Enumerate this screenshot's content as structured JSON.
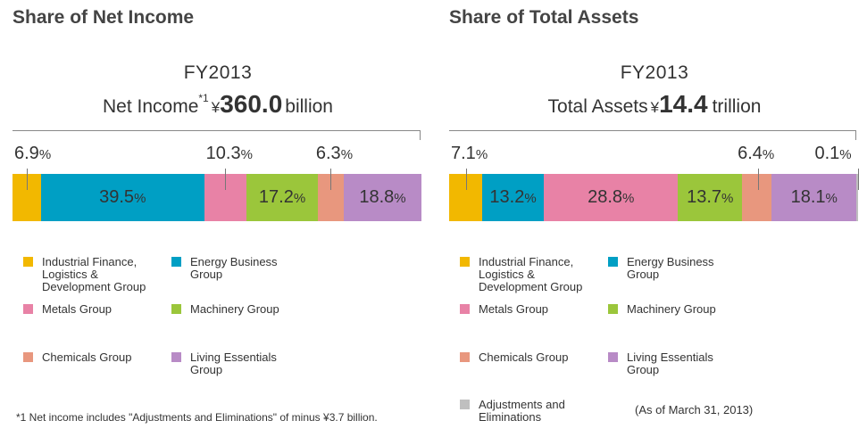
{
  "colors": {
    "industrial": "#f2b800",
    "energy": "#009fc4",
    "metals": "#e882a6",
    "machinery": "#9bc63b",
    "chemicals": "#e8977e",
    "living": "#b88bc6",
    "adjustments": "#bfbfbf"
  },
  "legend": [
    {
      "key": "industrial",
      "label": "Industrial Finance, Logistics & Development Group"
    },
    {
      "key": "energy",
      "label": "Energy Business Group"
    },
    {
      "key": "metals",
      "label": "Metals Group"
    },
    {
      "key": "machinery",
      "label": "Machinery Group"
    },
    {
      "key": "chemicals",
      "label": "Chemicals Group"
    },
    {
      "key": "living",
      "label": "Living Essentials Group"
    },
    {
      "key": "adjustments",
      "label": "Adjustments and Eliminations"
    }
  ],
  "chart_data": [
    {
      "type": "bar",
      "heading": "Share of Net Income",
      "fy": "FY2013",
      "total_label": "Net Income",
      "total_footnote_mark": "*1",
      "currency": "¥",
      "total_value": "360.0",
      "total_unit": "billion",
      "unit": "%",
      "segments": [
        {
          "key": "industrial",
          "value": 6.9,
          "label": "6.9"
        },
        {
          "key": "energy",
          "value": 39.5,
          "label": "39.5"
        },
        {
          "key": "metals",
          "value": 10.3,
          "label": "10.3"
        },
        {
          "key": "machinery",
          "value": 17.2,
          "label": "17.2"
        },
        {
          "key": "chemicals",
          "value": 6.3,
          "label": "6.3"
        },
        {
          "key": "living",
          "value": 18.8,
          "label": "18.8"
        }
      ]
    },
    {
      "type": "bar",
      "heading": "Share of  Total Assets",
      "fy": "FY2013",
      "total_label": "Total Assets",
      "total_footnote_mark": "",
      "currency": "¥",
      "total_value": "14.4",
      "total_unit": "trillion",
      "unit": "%",
      "segments": [
        {
          "key": "industrial",
          "value": 7.1,
          "label": "7.1"
        },
        {
          "key": "energy",
          "value": 13.2,
          "label": "13.2"
        },
        {
          "key": "metals",
          "value": 28.8,
          "label": "28.8"
        },
        {
          "key": "machinery",
          "value": 13.7,
          "label": "13.7"
        },
        {
          "key": "chemicals",
          "value": 6.4,
          "label": "6.4"
        },
        {
          "key": "living",
          "value": 18.1,
          "label": "18.1"
        },
        {
          "key": "adjustments",
          "value": 0.1,
          "label": "0.1"
        }
      ]
    }
  ],
  "footnote": "*1  Net income includes \"Adjustments and Eliminations\" of minus ¥3.7 billion.",
  "as_of": "(As of March 31, 2013)"
}
